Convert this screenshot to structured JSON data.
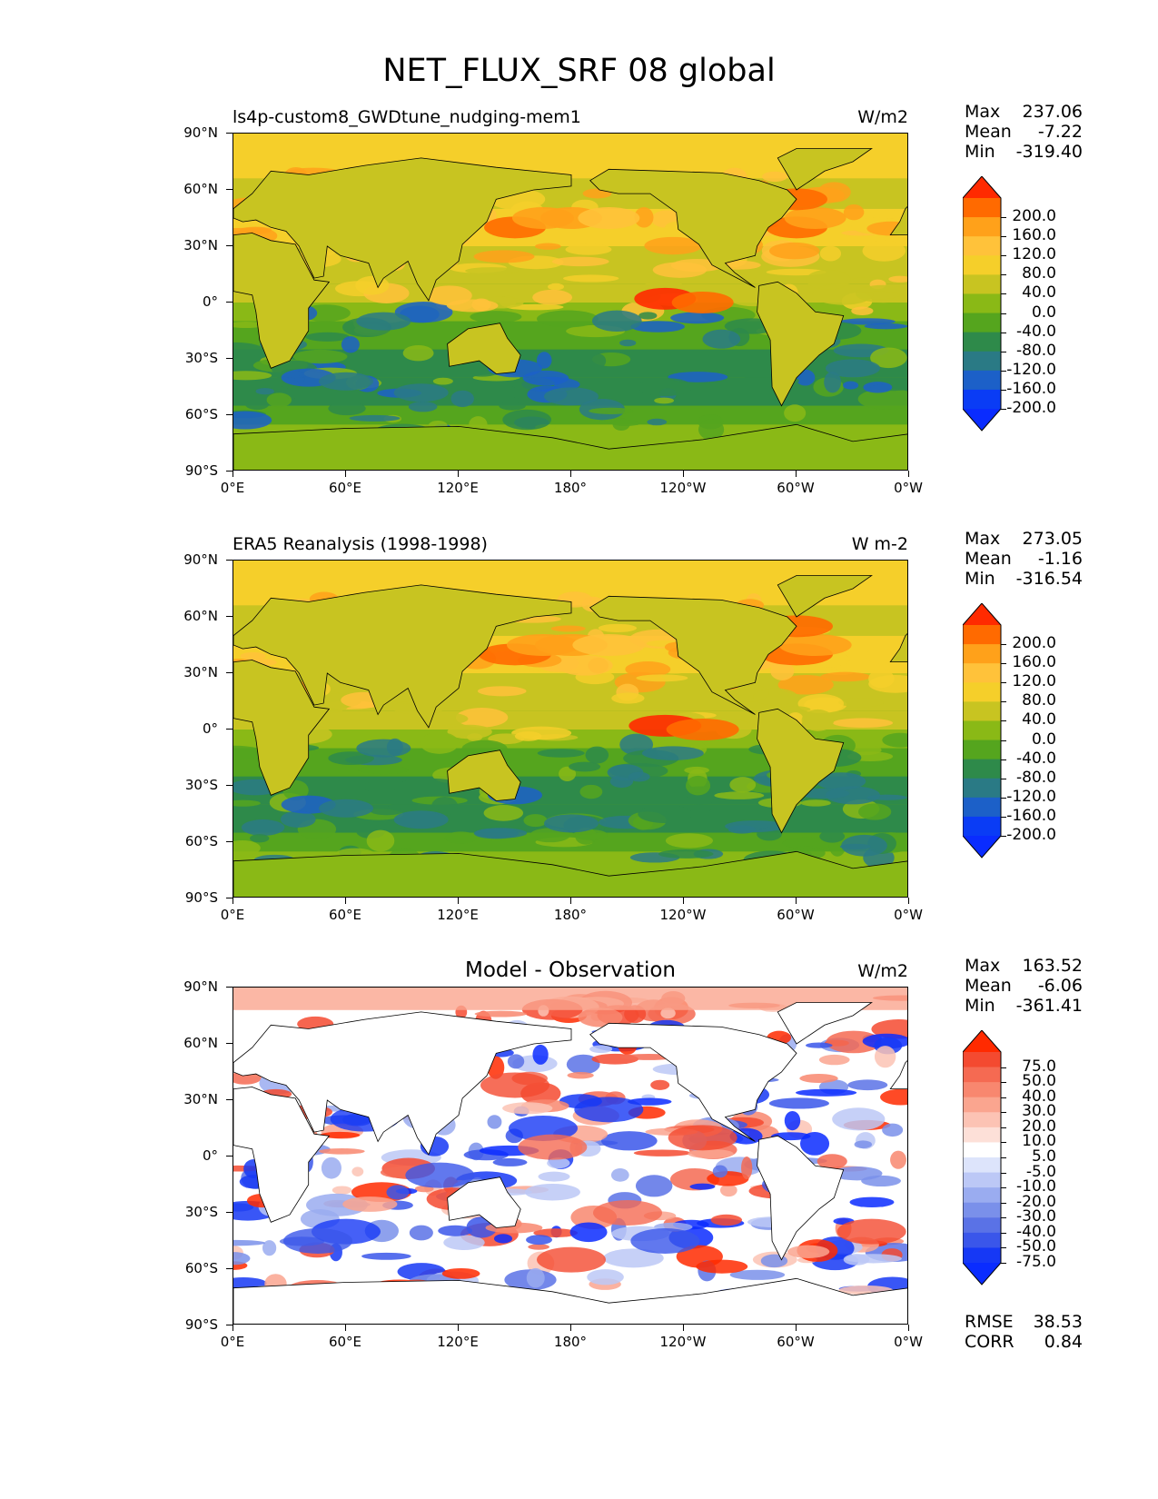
{
  "title": "NET_FLUX_SRF 08 global",
  "lat_ticks": [
    "90°N",
    "60°N",
    "30°N",
    "0°",
    "30°S",
    "60°S",
    "90°S"
  ],
  "lon_ticks": [
    "0°E",
    "60°E",
    "120°E",
    "180°",
    "120°W",
    "60°W",
    "0°W"
  ],
  "panels": [
    {
      "title": "ls4p-custom8_GWDtune_nudging-mem1",
      "title_style": "left",
      "units": "W/m2",
      "stats": {
        "max_label": "Max",
        "max": "237.06",
        "mean_label": "Mean",
        "mean": "-7.22",
        "min_label": "Min",
        "min": "-319.40"
      },
      "colorbar": {
        "labels": [
          "200.0",
          "160.0",
          "120.0",
          "80.0",
          "40.0",
          "0.0",
          "-40.0",
          "-80.0",
          "-120.0",
          "-160.0",
          "-200.0"
        ],
        "colors": [
          "#ff2a00",
          "#ff6a00",
          "#ffa11a",
          "#ffc23a",
          "#f5cf2a",
          "#c8c421",
          "#8ab916",
          "#55a51e",
          "#2e8a4a",
          "#2a7a85",
          "#1c60c8",
          "#0a3cf5",
          "#0a2cff"
        ]
      },
      "map_style": "flux"
    },
    {
      "title": "ERA5 Reanalysis (1998-1998)",
      "title_style": "left",
      "units": "W m-2",
      "stats": {
        "max_label": "Max",
        "max": "273.05",
        "mean_label": "Mean",
        "mean": "-1.16",
        "min_label": "Min",
        "min": "-316.54"
      },
      "colorbar": {
        "labels": [
          "200.0",
          "160.0",
          "120.0",
          "80.0",
          "40.0",
          "0.0",
          "-40.0",
          "-80.0",
          "-120.0",
          "-160.0",
          "-200.0"
        ],
        "colors": [
          "#ff2a00",
          "#ff6a00",
          "#ffa11a",
          "#ffc23a",
          "#f5cf2a",
          "#c8c421",
          "#8ab916",
          "#55a51e",
          "#2e8a4a",
          "#2a7a85",
          "#1c60c8",
          "#0a3cf5",
          "#0a2cff"
        ]
      },
      "map_style": "flux"
    },
    {
      "title": "Model - Observation",
      "title_style": "center",
      "units": "W/m2",
      "stats": {
        "max_label": "Max",
        "max": "163.52",
        "mean_label": "Mean",
        "mean": "-6.06",
        "min_label": "Min",
        "min": "-361.41"
      },
      "colorbar": {
        "labels": [
          "75.0",
          "50.0",
          "40.0",
          "30.0",
          "20.0",
          "10.0",
          "5.0",
          "-5.0",
          "-10.0",
          "-20.0",
          "-30.0",
          "-40.0",
          "-50.0",
          "-75.0"
        ],
        "colors": [
          "#ff2a00",
          "#f44a30",
          "#f56a52",
          "#f8876f",
          "#faa58f",
          "#fcc3b4",
          "#fde0d8",
          "#ffffff",
          "#dde4fb",
          "#bcc8f6",
          "#9aacf0",
          "#7a90ea",
          "#5a72e6",
          "#3a56ea",
          "#1638f5",
          "#0a2cff"
        ]
      },
      "map_style": "diff",
      "extra_stats": {
        "rmse_label": "RMSE",
        "rmse": "38.53",
        "corr_label": "CORR",
        "corr": "0.84"
      }
    }
  ]
}
